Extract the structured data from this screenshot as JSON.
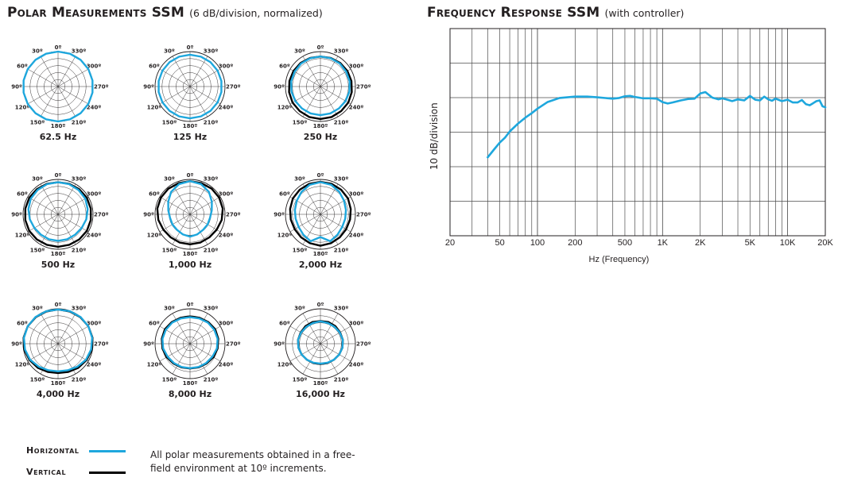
{
  "polar_section": {
    "title": "Polar Measurements SSM",
    "subtitle": "(6 dB/division, normalized)"
  },
  "fr_section": {
    "title": "Frequency Response SSM",
    "subtitle": "(with controller)"
  },
  "legend": {
    "horizontal_label": "Horizontal",
    "vertical_label": "Vertical",
    "horizontal_color": "#1ea7dd",
    "vertical_color": "#000000",
    "note_line1": "All polar measurements obtained in a free-",
    "note_line2": "field environment at 10º increments."
  },
  "chart_data": [
    {
      "type": "polar",
      "angle_labels": [
        "0º",
        "30º",
        "60º",
        "90º",
        "120º",
        "150º",
        "180º",
        "210º",
        "240º",
        "270º",
        "300º",
        "330º"
      ],
      "plots": [
        {
          "label": "62.5 Hz",
          "horizontal": [
            1.0,
            1.0,
            1.0,
            1.0,
            1.0,
            1.0,
            1.0,
            1.0,
            1.0,
            1.0,
            1.0,
            1.0,
            1.0,
            1.0,
            1.0,
            1.0,
            1.0,
            1.0
          ],
          "vertical": null
        },
        {
          "label": "125 Hz",
          "horizontal": [
            0.91,
            0.91,
            0.91,
            0.91,
            0.91,
            0.91,
            0.91,
            0.91,
            0.91,
            0.91,
            0.91,
            0.91,
            0.91,
            0.91,
            0.91,
            0.91,
            0.91,
            0.91
          ],
          "vertical": null
        },
        {
          "label": "250 Hz",
          "horizontal": [
            0.86,
            0.86,
            0.86,
            0.85,
            0.85,
            0.84,
            0.83,
            0.82,
            0.82,
            0.82,
            0.82,
            0.82,
            0.83,
            0.84,
            0.85,
            0.85,
            0.86,
            0.86
          ],
          "vertical": [
            0.86,
            0.87,
            0.88,
            0.89,
            0.9,
            0.91,
            0.92,
            0.92,
            0.93,
            0.93,
            0.93,
            0.92,
            0.92,
            0.91,
            0.9,
            0.89,
            0.88,
            0.87
          ]
        },
        {
          "label": "500 Hz",
          "horizontal": [
            0.92,
            0.92,
            0.91,
            0.9,
            0.86,
            0.82,
            0.78,
            0.76,
            0.76,
            0.76,
            0.76,
            0.76,
            0.78,
            0.82,
            0.86,
            0.9,
            0.91,
            0.92
          ],
          "vertical": [
            0.92,
            0.93,
            0.94,
            0.95,
            0.95,
            0.95,
            0.95,
            0.94,
            0.93,
            0.93,
            0.93,
            0.94,
            0.95,
            0.95,
            0.95,
            0.95,
            0.94,
            0.93
          ]
        },
        {
          "label": "1,000 Hz",
          "horizontal": [
            0.95,
            0.92,
            0.84,
            0.72,
            0.63,
            0.58,
            0.58,
            0.58,
            0.61,
            0.64,
            0.61,
            0.58,
            0.58,
            0.58,
            0.63,
            0.72,
            0.84,
            0.92
          ],
          "vertical": [
            0.95,
            0.95,
            0.96,
            0.96,
            0.95,
            0.92,
            0.88,
            0.86,
            0.86,
            0.86,
            0.86,
            0.86,
            0.88,
            0.92,
            0.95,
            0.96,
            0.96,
            0.95
          ]
        },
        {
          "label": "2,000 Hz",
          "horizontal": [
            0.92,
            0.9,
            0.84,
            0.78,
            0.74,
            0.72,
            0.72,
            0.76,
            0.82,
            0.65,
            0.82,
            0.76,
            0.72,
            0.72,
            0.74,
            0.78,
            0.84,
            0.9
          ],
          "vertical": [
            0.93,
            0.93,
            0.92,
            0.91,
            0.88,
            0.86,
            0.85,
            0.86,
            0.88,
            0.9,
            0.88,
            0.86,
            0.85,
            0.86,
            0.88,
            0.91,
            0.92,
            0.93
          ]
        },
        {
          "label": "4,000 Hz",
          "horizontal": [
            0.98,
            0.99,
            1.0,
            1.0,
            0.99,
            0.96,
            0.92,
            0.86,
            0.81,
            0.79,
            0.81,
            0.86,
            0.92,
            0.96,
            0.99,
            1.0,
            1.0,
            0.99
          ],
          "vertical": [
            0.98,
            0.98,
            0.99,
            1.0,
            1.0,
            0.98,
            0.94,
            0.9,
            0.86,
            0.84,
            0.86,
            0.9,
            0.94,
            0.98,
            1.0,
            1.0,
            0.99,
            0.98
          ]
        },
        {
          "label": "8,000 Hz",
          "horizontal": [
            0.76,
            0.77,
            0.79,
            0.8,
            0.8,
            0.78,
            0.74,
            0.72,
            0.71,
            0.7,
            0.71,
            0.72,
            0.74,
            0.78,
            0.8,
            0.8,
            0.79,
            0.77
          ],
          "vertical": [
            0.78,
            0.79,
            0.81,
            0.83,
            0.82,
            0.8,
            0.77,
            0.74,
            0.72,
            0.71,
            0.72,
            0.74,
            0.77,
            0.8,
            0.82,
            0.83,
            0.81,
            0.79
          ]
        },
        {
          "label": "16,000 Hz",
          "horizontal": [
            0.64,
            0.63,
            0.63,
            0.64,
            0.65,
            0.64,
            0.62,
            0.6,
            0.58,
            0.57,
            0.58,
            0.6,
            0.62,
            0.64,
            0.65,
            0.64,
            0.63,
            0.63
          ],
          "vertical": [
            0.65,
            0.66,
            0.66,
            0.65,
            0.65,
            0.64,
            0.62,
            0.6,
            0.59,
            0.58,
            0.59,
            0.6,
            0.62,
            0.64,
            0.65,
            0.65,
            0.66,
            0.66
          ]
        }
      ]
    },
    {
      "type": "line",
      "title": "Frequency Response SSM",
      "xlabel": "Hz (Frequency)",
      "ylabel": "10 dB/division",
      "x_scale": "log",
      "xlim": [
        20,
        20000
      ],
      "y_divisions": 6,
      "grid": true,
      "x_ticks": [
        20,
        50,
        100,
        200,
        500,
        1000,
        2000,
        5000,
        10000,
        20000
      ],
      "x_tick_labels": [
        "20",
        "50",
        "100",
        "200",
        "500",
        "1K",
        "2K",
        "5K",
        "10K",
        "20K"
      ],
      "series": [
        {
          "color": "#1ea7dd",
          "x": [
            40,
            45,
            50,
            55,
            60,
            70,
            80,
            90,
            100,
            120,
            150,
            200,
            250,
            300,
            400,
            450,
            500,
            550,
            600,
            700,
            800,
            900,
            1000,
            1100,
            1200,
            1400,
            1600,
            1800,
            2000,
            2200,
            2500,
            2800,
            3000,
            3300,
            3600,
            4000,
            4500,
            5000,
            5500,
            6000,
            6500,
            7000,
            7500,
            8000,
            9000,
            10000,
            11000,
            12000,
            13000,
            14000,
            15000,
            16000,
            17000,
            18000,
            19000,
            20000
          ],
          "y": [
            -1.73,
            -1.5,
            -1.3,
            -1.16,
            -0.98,
            -0.75,
            -0.58,
            -0.45,
            -0.32,
            -0.13,
            -0.01,
            0.03,
            0.03,
            0.01,
            -0.03,
            -0.01,
            0.04,
            0.05,
            0.02,
            -0.02,
            -0.02,
            -0.03,
            -0.13,
            -0.17,
            -0.14,
            -0.08,
            -0.04,
            -0.03,
            0.12,
            0.16,
            0.0,
            -0.05,
            -0.02,
            -0.06,
            -0.1,
            -0.05,
            -0.08,
            0.05,
            -0.06,
            -0.08,
            0.03,
            -0.05,
            -0.09,
            -0.03,
            -0.1,
            -0.06,
            -0.14,
            -0.14,
            -0.07,
            -0.19,
            -0.22,
            -0.16,
            -0.1,
            -0.08,
            -0.25,
            -0.28
          ]
        }
      ]
    }
  ]
}
